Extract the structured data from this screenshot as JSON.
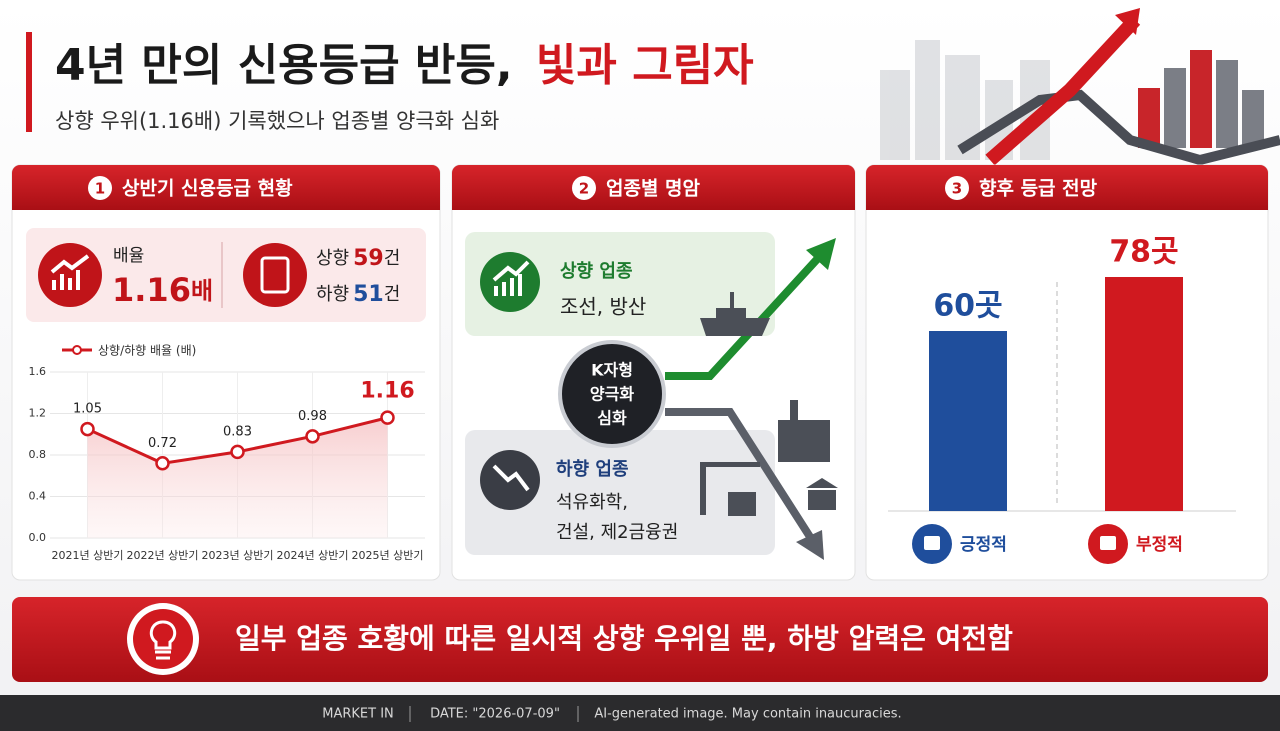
{
  "header": {
    "title_main": "4년 만의 신용등급 반등,",
    "title_accent": "빛과 그림자",
    "subtitle": "상향 우위(1.16배) 기록했으나 업종별 양극화 심화"
  },
  "panels": [
    {
      "number": "1",
      "title": "상반기 신용등급 현황",
      "ratio_label": "배율",
      "ratio_value": 1.16,
      "ratio_unit": "배",
      "up_label": "상향",
      "up_count": 59,
      "down_label": "하향",
      "down_count": 51,
      "count_unit": "건"
    },
    {
      "number": "2",
      "title": "업종별 명암",
      "up_title": "상향 업종",
      "up_items": "조선, 방산",
      "center": [
        "K자형",
        "양극화",
        "심화"
      ],
      "down_title": "하향 업종",
      "down_items": [
        "석유화학,",
        "건설, 제2금융권"
      ]
    },
    {
      "number": "3",
      "title": "향후 등급 전망"
    }
  ],
  "chart_data": [
    {
      "type": "line",
      "categories": [
        "2021년 상반기",
        "2022년 상반기",
        "2023년 상반기",
        "2024년 상반기",
        "2025년 상반기"
      ],
      "series": [
        {
          "name": "상향/하향 배율 (배)",
          "color": "#d0191f",
          "values": [
            1.05,
            0.72,
            0.83,
            0.98,
            1.16
          ]
        }
      ],
      "ylim": [
        0,
        1.6
      ],
      "yticks": [
        {
          "value": 0,
          "label": "0.0"
        },
        0.4,
        0.8,
        1.2,
        1.6
      ],
      "grid": true
    },
    {
      "type": "bar",
      "categories": [
        "긍정적",
        "부정적"
      ],
      "values": [
        60,
        78
      ],
      "value_labels": [
        "60곳",
        "78곳"
      ],
      "colors": [
        "#1f4e9c",
        "#d0191f"
      ]
    }
  ],
  "conclusion": "일부 업종 호황에 따른 일시적 상향 우위일 뿐, 하방 압력은 여전함",
  "footer": [
    "MARKET IN",
    "DATE: \"2026-07-09\"",
    "AI-generated image. May contain inaucuracies."
  ]
}
